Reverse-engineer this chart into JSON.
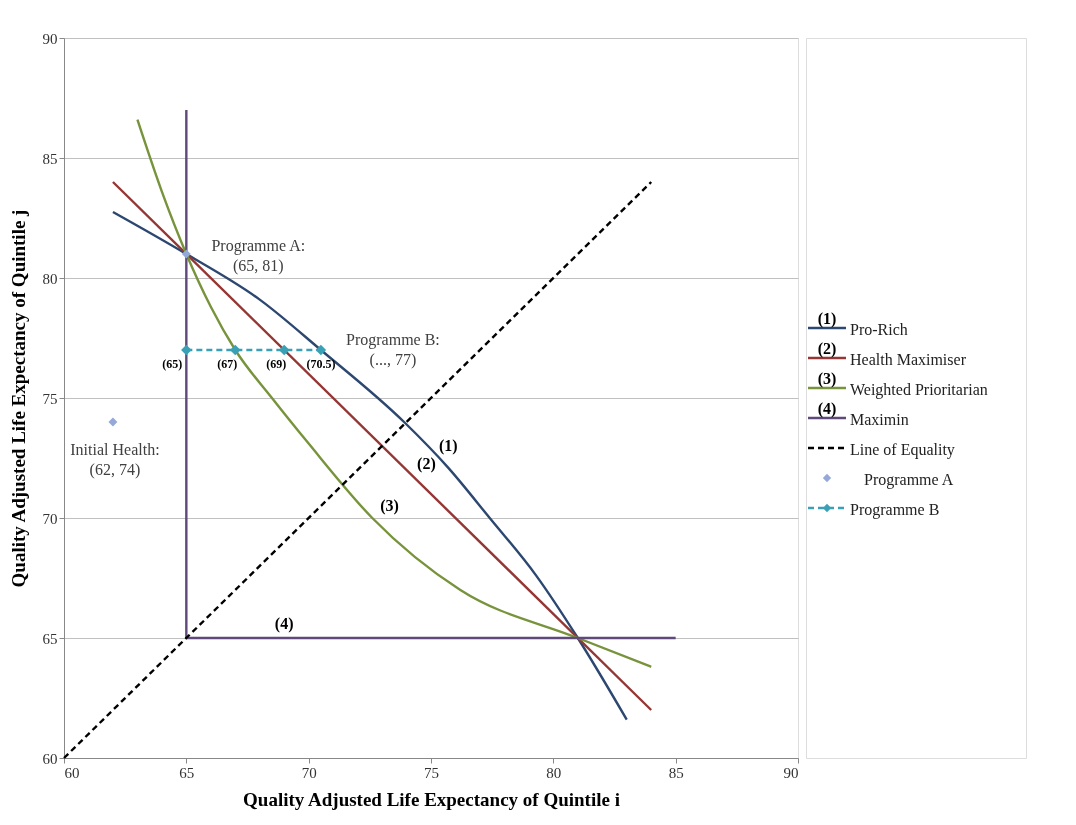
{
  "chart_data": {
    "type": "line",
    "xlabel": "Quality Adjusted Life Expectancy of Quintile i",
    "ylabel": "Quality Adjusted Life Expectancy of Quintile j",
    "xlim": [
      60,
      90
    ],
    "xticks": [
      60,
      65,
      70,
      75,
      80,
      85,
      90
    ],
    "ylim": [
      60,
      90
    ],
    "yticks": [
      60,
      65,
      70,
      75,
      80,
      85,
      90
    ],
    "grid": "y",
    "legend": "right",
    "series": [
      {
        "name": "Pro-Rich",
        "color": "#2c4770",
        "x": [
          62,
          65,
          68,
          70.5,
          73.9,
          75.7,
          77.4,
          79.3,
          81,
          83
        ],
        "values": [
          82.75,
          81,
          79.1,
          77,
          74,
          72.1,
          70,
          67.6,
          65,
          61.6
        ]
      },
      {
        "name": "Health Maximiser",
        "color": "#943634",
        "x": [
          62,
          84
        ],
        "values": [
          84,
          62
        ]
      },
      {
        "name": "Weighted Prioritarian",
        "color": "#77933c",
        "x": [
          63,
          64,
          65,
          66,
          67,
          68.5,
          70,
          72.6,
          76.2,
          81,
          84
        ],
        "values": [
          86.6,
          83.6,
          81,
          78.8,
          77,
          75,
          73.1,
          70,
          67,
          65,
          63.8
        ]
      },
      {
        "name": "Maximin",
        "color": "#5f497a",
        "x": [
          65,
          65,
          85
        ],
        "values": [
          87,
          65,
          65
        ]
      },
      {
        "name": "Line of Equality",
        "color": "#000000",
        "line_style": "dashed",
        "x": [
          60,
          84
        ],
        "values": [
          60,
          84
        ]
      },
      {
        "name": "Programme A",
        "type": "scatter",
        "color": "#95a9d8",
        "marker": "diamond",
        "x": [
          65,
          62
        ],
        "values": [
          81,
          74
        ]
      },
      {
        "name": "Programme B",
        "color": "#3aa0b5",
        "line_style": "dashed",
        "marker": "diamond",
        "x": [
          65,
          67,
          69,
          70.5
        ],
        "values": [
          77,
          77,
          77,
          77
        ]
      }
    ],
    "annotations": [
      {
        "text": "Programme A:\n(65, 81)",
        "x": 65,
        "y": 81
      },
      {
        "text": "Programme B:\n(..., 77)",
        "x": 70.5,
        "y": 77
      },
      {
        "text": "Initial Health:\n(62, 74)",
        "x": 62,
        "y": 74
      },
      {
        "text": "(65)",
        "x": 65,
        "y": 77
      },
      {
        "text": "(67)",
        "x": 67,
        "y": 77
      },
      {
        "text": "(69)",
        "x": 69,
        "y": 77
      },
      {
        "text": "(70.5)",
        "x": 70.5,
        "y": 77
      },
      {
        "text": "(1)",
        "x": 74.85,
        "y": 73.0
      },
      {
        "text": "(2)",
        "x": 73.75,
        "y": 72.25
      },
      {
        "text": "(3)",
        "x": 72.2,
        "y": 70.5
      },
      {
        "text": "(4)",
        "x": 69.0,
        "y": 65
      },
      "(1)",
      "(2)",
      "(3)",
      "(4)"
    ]
  }
}
